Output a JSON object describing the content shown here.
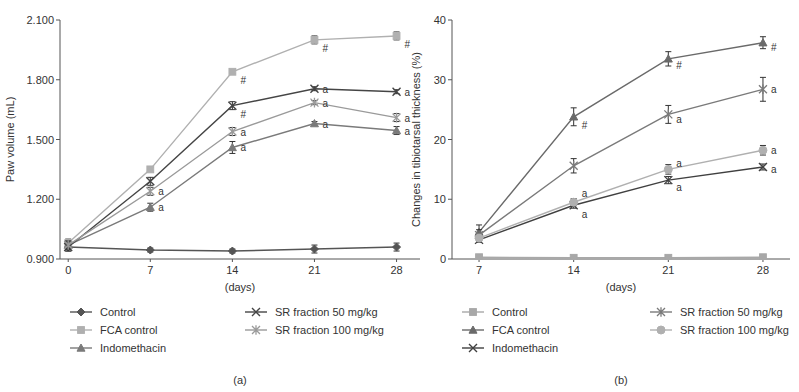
{
  "chart_data": [
    {
      "type": "line",
      "title": "(a)",
      "x_label": "(days)",
      "y_label": "Paw volume (mL)",
      "x": [
        0,
        7,
        14,
        21,
        28
      ],
      "xlim": [
        -0.7,
        30
      ],
      "xticks": [
        0,
        7,
        14,
        21,
        28
      ],
      "ylim": [
        0.9,
        2.1
      ],
      "yticks": [
        {
          "value": 0.9,
          "label": "0.900"
        },
        {
          "value": 1.2,
          "label": "1.200"
        },
        {
          "value": 1.5,
          "label": "1.500"
        },
        {
          "value": 1.8,
          "label": "1.800"
        },
        {
          "value": 2.1,
          "label": "2.100"
        }
      ],
      "grid": false,
      "legend": "bottom",
      "series": [
        {
          "name": "Control",
          "color": "#555555",
          "marker": "diamond",
          "values": [
            0.96,
            0.945,
            0.94,
            0.95,
            0.96
          ],
          "errors": [
            0.02,
            0.01,
            0.01,
            0.02,
            0.02
          ]
        },
        {
          "name": "FCA control",
          "color": "#b0b0b0",
          "marker": "square",
          "values": [
            0.98,
            1.35,
            1.84,
            2.0,
            2.02
          ],
          "errors": [
            0.02,
            0.01,
            0.01,
            0.02,
            0.02
          ]
        },
        {
          "name": "Indomethacin",
          "color": "#7a7a7a",
          "marker": "triangle",
          "values": [
            0.97,
            1.16,
            1.46,
            1.58,
            1.545
          ],
          "errors": [
            0.02,
            0.02,
            0.03,
            0.01,
            0.02
          ]
        },
        {
          "name": "SR fraction 50 mg/kg",
          "color": "#454545",
          "marker": "x",
          "values": [
            0.96,
            1.29,
            1.67,
            1.755,
            1.74
          ],
          "errors": [
            0.02,
            0.02,
            0.02,
            0.01,
            0.01
          ]
        },
        {
          "name": "SR fraction 100 mg/kg",
          "color": "#9a9a9a",
          "marker": "star",
          "values": [
            0.97,
            1.24,
            1.54,
            1.685,
            1.61
          ],
          "errors": [
            0.02,
            0.02,
            0.02,
            0.01,
            0.02
          ]
        }
      ],
      "annotations": [
        {
          "text": "#",
          "x": 14,
          "y": 1.8
        },
        {
          "text": "#",
          "x": 21,
          "y": 1.96
        },
        {
          "text": "#",
          "x": 28,
          "y": 1.98
        },
        {
          "text": "#",
          "x": 14,
          "y": 1.63
        },
        {
          "text": "a",
          "x": 21,
          "y": 1.755
        },
        {
          "text": "a",
          "x": 28,
          "y": 1.74
        },
        {
          "text": "a",
          "x": 7,
          "y": 1.24
        },
        {
          "text": "a",
          "x": 7,
          "y": 1.16
        },
        {
          "text": "a",
          "x": 14,
          "y": 1.54
        },
        {
          "text": "a",
          "x": 14,
          "y": 1.46
        },
        {
          "text": "a",
          "x": 21,
          "y": 1.685
        },
        {
          "text": "a",
          "x": 21,
          "y": 1.58
        },
        {
          "text": "a",
          "x": 28,
          "y": 1.61
        },
        {
          "text": "a",
          "x": 28,
          "y": 1.545
        }
      ]
    },
    {
      "type": "line",
      "title": "(b)",
      "x_label": "(days)",
      "y_label": "Changes in tibiotarsal thickness (%)",
      "x": [
        7,
        14,
        21,
        28
      ],
      "xlim": [
        5,
        30
      ],
      "xticks": [
        7,
        14,
        21,
        28
      ],
      "ylim": [
        0,
        40
      ],
      "yticks": [
        0,
        10,
        20,
        30,
        40
      ],
      "grid": false,
      "legend": "bottom",
      "series": [
        {
          "name": "Control",
          "color": "#a8a8a8",
          "marker": "square",
          "values": [
            0.3,
            0.2,
            0.2,
            0.3
          ],
          "errors": [
            0.1,
            0.1,
            0.1,
            0.1
          ]
        },
        {
          "name": "FCA control",
          "color": "#6a6a6a",
          "marker": "triangle",
          "values": [
            4.5,
            23.8,
            33.5,
            36.2
          ],
          "errors": [
            1.2,
            1.5,
            1.2,
            1.0
          ]
        },
        {
          "name": "Indomethacin",
          "color": "#404040",
          "marker": "x",
          "values": [
            3.2,
            9.0,
            13.2,
            15.4
          ],
          "errors": [
            0.4,
            0.5,
            0.6,
            0.5
          ]
        },
        {
          "name": "SR fraction 50 mg/kg",
          "color": "#7a7a7a",
          "marker": "star",
          "values": [
            4.0,
            15.6,
            24.2,
            28.4
          ],
          "errors": [
            0.9,
            1.2,
            1.5,
            2.0
          ]
        },
        {
          "name": "SR fraction 100 mg/kg",
          "color": "#b0b0b0",
          "marker": "circle",
          "values": [
            3.5,
            9.5,
            15.0,
            18.2
          ],
          "errors": [
            0.5,
            0.6,
            0.8,
            0.8
          ]
        }
      ],
      "annotations": [
        {
          "text": "#",
          "x": 14,
          "y": 22.5
        },
        {
          "text": "#",
          "x": 21,
          "y": 32.5
        },
        {
          "text": "#",
          "x": 28,
          "y": 35.5
        },
        {
          "text": "a",
          "x": 14,
          "y": 11.0
        },
        {
          "text": "a",
          "x": 14,
          "y": 7.5
        },
        {
          "text": "a",
          "x": 21,
          "y": 23.5
        },
        {
          "text": "a",
          "x": 21,
          "y": 16.0
        },
        {
          "text": "a",
          "x": 21,
          "y": 12.0
        },
        {
          "text": "a",
          "x": 28,
          "y": 28.4
        },
        {
          "text": "a",
          "x": 28,
          "y": 18.2
        },
        {
          "text": "a",
          "x": 28,
          "y": 15.0
        }
      ]
    }
  ]
}
